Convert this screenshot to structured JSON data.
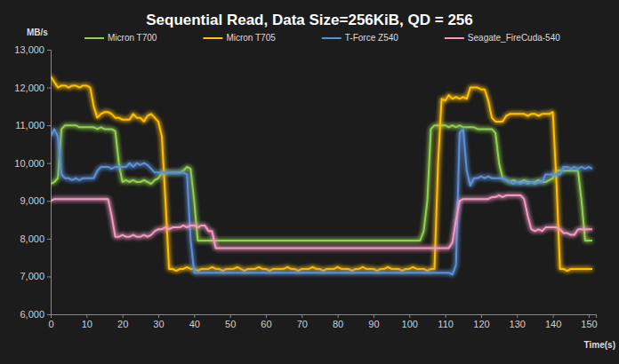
{
  "chart_data": {
    "type": "line",
    "title": "Sequential Read, Data Size=256KiB, QD = 256",
    "y_label": "MB/s",
    "x_label": "Time(s)",
    "xlim": [
      0,
      152
    ],
    "xticks": [
      0,
      10,
      20,
      30,
      40,
      50,
      60,
      70,
      80,
      90,
      100,
      110,
      120,
      130,
      140,
      150
    ],
    "ylim": [
      6000,
      13000
    ],
    "yticks": [
      {
        "value": 6000,
        "label": "6,000"
      },
      {
        "value": 7000,
        "label": "7,000"
      },
      {
        "value": 8000,
        "label": "8,000"
      },
      {
        "value": 9000,
        "label": "9,000"
      },
      {
        "value": 10000,
        "label": "10,000"
      },
      {
        "value": 11000,
        "label": "11,000"
      },
      {
        "value": 12000,
        "label": "12,000"
      },
      {
        "value": 13000,
        "label": "13,000"
      }
    ],
    "grid": false,
    "legend": "top",
    "x": [
      0,
      1,
      2,
      3,
      4,
      5,
      6,
      7,
      8,
      9,
      10,
      11,
      12,
      13,
      14,
      15,
      16,
      17,
      18,
      19,
      20,
      21,
      22,
      23,
      24,
      25,
      26,
      27,
      28,
      29,
      30,
      31,
      32,
      33,
      34,
      35,
      36,
      37,
      38,
      39,
      40,
      41,
      42,
      43,
      44,
      45,
      46,
      47,
      48,
      49,
      50,
      51,
      52,
      53,
      54,
      55,
      56,
      57,
      58,
      59,
      60,
      61,
      62,
      63,
      64,
      65,
      66,
      67,
      68,
      69,
      70,
      71,
      72,
      73,
      74,
      75,
      76,
      77,
      78,
      79,
      80,
      81,
      82,
      83,
      84,
      85,
      86,
      87,
      88,
      89,
      90,
      91,
      92,
      93,
      94,
      95,
      96,
      97,
      98,
      99,
      100,
      101,
      102,
      103,
      104,
      105,
      106,
      107,
      108,
      109,
      110,
      111,
      112,
      113,
      114,
      115,
      116,
      117,
      118,
      119,
      120,
      121,
      122,
      123,
      124,
      125,
      126,
      127,
      128,
      129,
      130,
      131,
      132,
      133,
      134,
      135,
      136,
      137,
      138,
      139,
      140,
      141,
      142,
      143,
      144,
      145,
      146,
      147,
      148,
      149,
      150,
      151
    ],
    "series": [
      {
        "name": "Micron T700",
        "color": "#92d050",
        "values": [
          9450,
          9500,
          9600,
          10900,
          11000,
          11000,
          11000,
          11000,
          10950,
          10950,
          10950,
          10950,
          10950,
          10900,
          10950,
          10900,
          10900,
          10900,
          10850,
          10000,
          9500,
          9550,
          9500,
          9550,
          9500,
          9500,
          9550,
          9500,
          9450,
          9550,
          9600,
          9750,
          9750,
          9750,
          9750,
          9750,
          9750,
          9800,
          9900,
          9850,
          9000,
          7950,
          7950,
          7950,
          7950,
          7950,
          7950,
          7950,
          7950,
          7950,
          7950,
          7950,
          7950,
          7950,
          7950,
          7950,
          7950,
          7950,
          7950,
          7950,
          7950,
          7950,
          7950,
          7950,
          7950,
          7950,
          7950,
          7950,
          7950,
          7950,
          7950,
          7950,
          7950,
          7950,
          7950,
          7950,
          7950,
          7950,
          7950,
          7950,
          7950,
          7950,
          7950,
          7950,
          7950,
          7950,
          7950,
          7950,
          7950,
          7950,
          7950,
          7950,
          7950,
          7950,
          7950,
          7950,
          7950,
          7950,
          7950,
          7950,
          7950,
          7950,
          7950,
          7950,
          8200,
          9000,
          10900,
          11000,
          11000,
          11000,
          11000,
          10950,
          11000,
          10950,
          11000,
          10950,
          10950,
          10950,
          10950,
          10900,
          10900,
          10900,
          10900,
          10900,
          10800,
          10000,
          9600,
          9550,
          9500,
          9550,
          9500,
          9500,
          9550,
          9500,
          9500,
          9500,
          9550,
          9500,
          9500,
          9550,
          9600,
          9800,
          9800,
          9800,
          9800,
          9800,
          9800,
          9800,
          9000,
          7950,
          7950,
          7950
        ]
      },
      {
        "name": "Micron T705",
        "color": "#ffc000",
        "values": [
          12300,
          12150,
          12000,
          12050,
          12050,
          12000,
          12050,
          12050,
          12000,
          12050,
          12050,
          12000,
          11500,
          11200,
          11300,
          11350,
          11350,
          11300,
          11200,
          11200,
          11150,
          11150,
          11150,
          11300,
          11200,
          11200,
          11100,
          11250,
          11300,
          11200,
          11100,
          10700,
          9000,
          7200,
          7200,
          7150,
          7200,
          7200,
          7250,
          7200,
          7200,
          7150,
          7200,
          7200,
          7200,
          7250,
          7200,
          7200,
          7150,
          7200,
          7200,
          7200,
          7250,
          7200,
          7150,
          7200,
          7200,
          7200,
          7250,
          7200,
          7200,
          7150,
          7200,
          7200,
          7200,
          7200,
          7250,
          7200,
          7200,
          7150,
          7200,
          7200,
          7200,
          7250,
          7200,
          7200,
          7150,
          7200,
          7200,
          7200,
          7250,
          7200,
          7200,
          7200,
          7150,
          7200,
          7200,
          7250,
          7200,
          7200,
          7200,
          7150,
          7200,
          7200,
          7250,
          7200,
          7200,
          7200,
          7150,
          7200,
          7200,
          7250,
          7200,
          7200,
          7200,
          7150,
          7200,
          7200,
          10000,
          11700,
          11650,
          11800,
          11700,
          11750,
          11700,
          11750,
          11700,
          12000,
          12000,
          12000,
          11950,
          11950,
          11650,
          11200,
          11100,
          11100,
          11100,
          11250,
          11300,
          11300,
          11300,
          11300,
          11300,
          11250,
          11300,
          11300,
          11250,
          11300,
          11300,
          11300,
          11350,
          9500,
          7200,
          7200,
          7150,
          7200,
          7200,
          7200,
          7200,
          7200,
          7200,
          7200
        ]
      },
      {
        "name": "T-Force Z540",
        "color": "#5b8fd6",
        "values": [
          10700,
          10900,
          10700,
          9700,
          9600,
          9600,
          9550,
          9600,
          9550,
          9600,
          9600,
          9600,
          9600,
          9800,
          9900,
          9900,
          9900,
          9850,
          9900,
          9900,
          9900,
          9900,
          10000,
          9900,
          10000,
          9950,
          10000,
          9950,
          9850,
          9750,
          9750,
          9750,
          9750,
          9750,
          9750,
          9750,
          9750,
          9750,
          9700,
          8000,
          7100,
          7100,
          7100,
          7100,
          7100,
          7100,
          7100,
          7100,
          7100,
          7100,
          7100,
          7100,
          7100,
          7100,
          7100,
          7100,
          7100,
          7100,
          7100,
          7100,
          7100,
          7100,
          7100,
          7100,
          7100,
          7100,
          7100,
          7100,
          7100,
          7100,
          7100,
          7100,
          7100,
          7100,
          7100,
          7100,
          7100,
          7100,
          7100,
          7100,
          7100,
          7100,
          7100,
          7100,
          7100,
          7100,
          7100,
          7100,
          7100,
          7100,
          7100,
          7100,
          7100,
          7100,
          7100,
          7100,
          7100,
          7100,
          7100,
          7100,
          7100,
          7100,
          7100,
          7100,
          7100,
          7100,
          7100,
          7100,
          7100,
          7100,
          7100,
          7100,
          7050,
          7300,
          10800,
          10900,
          9800,
          9400,
          9600,
          9600,
          9650,
          9600,
          9650,
          9600,
          9600,
          9600,
          9600,
          9550,
          9500,
          9450,
          9500,
          9450,
          9500,
          9450,
          9500,
          9450,
          9500,
          9500,
          9700,
          9700,
          9700,
          9700,
          9700,
          9900,
          9900,
          9850,
          9900,
          9850,
          9900,
          9850,
          9900,
          9850
        ]
      },
      {
        "name": "Seagate_FireCuda-540",
        "color": "#f49ac1",
        "values": [
          9000,
          9050,
          9050,
          9050,
          9050,
          9050,
          9050,
          9050,
          9050,
          9050,
          9050,
          9050,
          9050,
          9050,
          9050,
          9050,
          9050,
          8600,
          8050,
          8050,
          8100,
          8050,
          8050,
          8100,
          8050,
          8050,
          8100,
          8050,
          8100,
          8200,
          8250,
          8250,
          8300,
          8250,
          8300,
          8300,
          8300,
          8350,
          8300,
          8350,
          8350,
          8300,
          8350,
          8350,
          8200,
          8200,
          7750,
          7750,
          7750,
          7750,
          7750,
          7750,
          7750,
          7750,
          7750,
          7750,
          7750,
          7750,
          7750,
          7750,
          7750,
          7750,
          7750,
          7750,
          7750,
          7750,
          7750,
          7750,
          7750,
          7750,
          7750,
          7750,
          7750,
          7750,
          7750,
          7750,
          7750,
          7750,
          7750,
          7750,
          7750,
          7750,
          7750,
          7750,
          7750,
          7750,
          7750,
          7750,
          7750,
          7750,
          7750,
          7750,
          7750,
          7750,
          7750,
          7750,
          7750,
          7750,
          7750,
          7750,
          7750,
          7750,
          7750,
          7750,
          7750,
          7750,
          7750,
          7750,
          7750,
          7750,
          7750,
          7750,
          7900,
          8500,
          9000,
          9050,
          9050,
          9050,
          9050,
          9050,
          9050,
          9050,
          9050,
          9100,
          9100,
          9150,
          9100,
          9150,
          9150,
          9150,
          9150,
          9150,
          9050,
          8600,
          8250,
          8200,
          8250,
          8200,
          8300,
          8300,
          8300,
          8300,
          8250,
          8150,
          8150,
          8100,
          8100,
          8250,
          8250,
          8250,
          8250,
          8250
        ]
      }
    ]
  }
}
